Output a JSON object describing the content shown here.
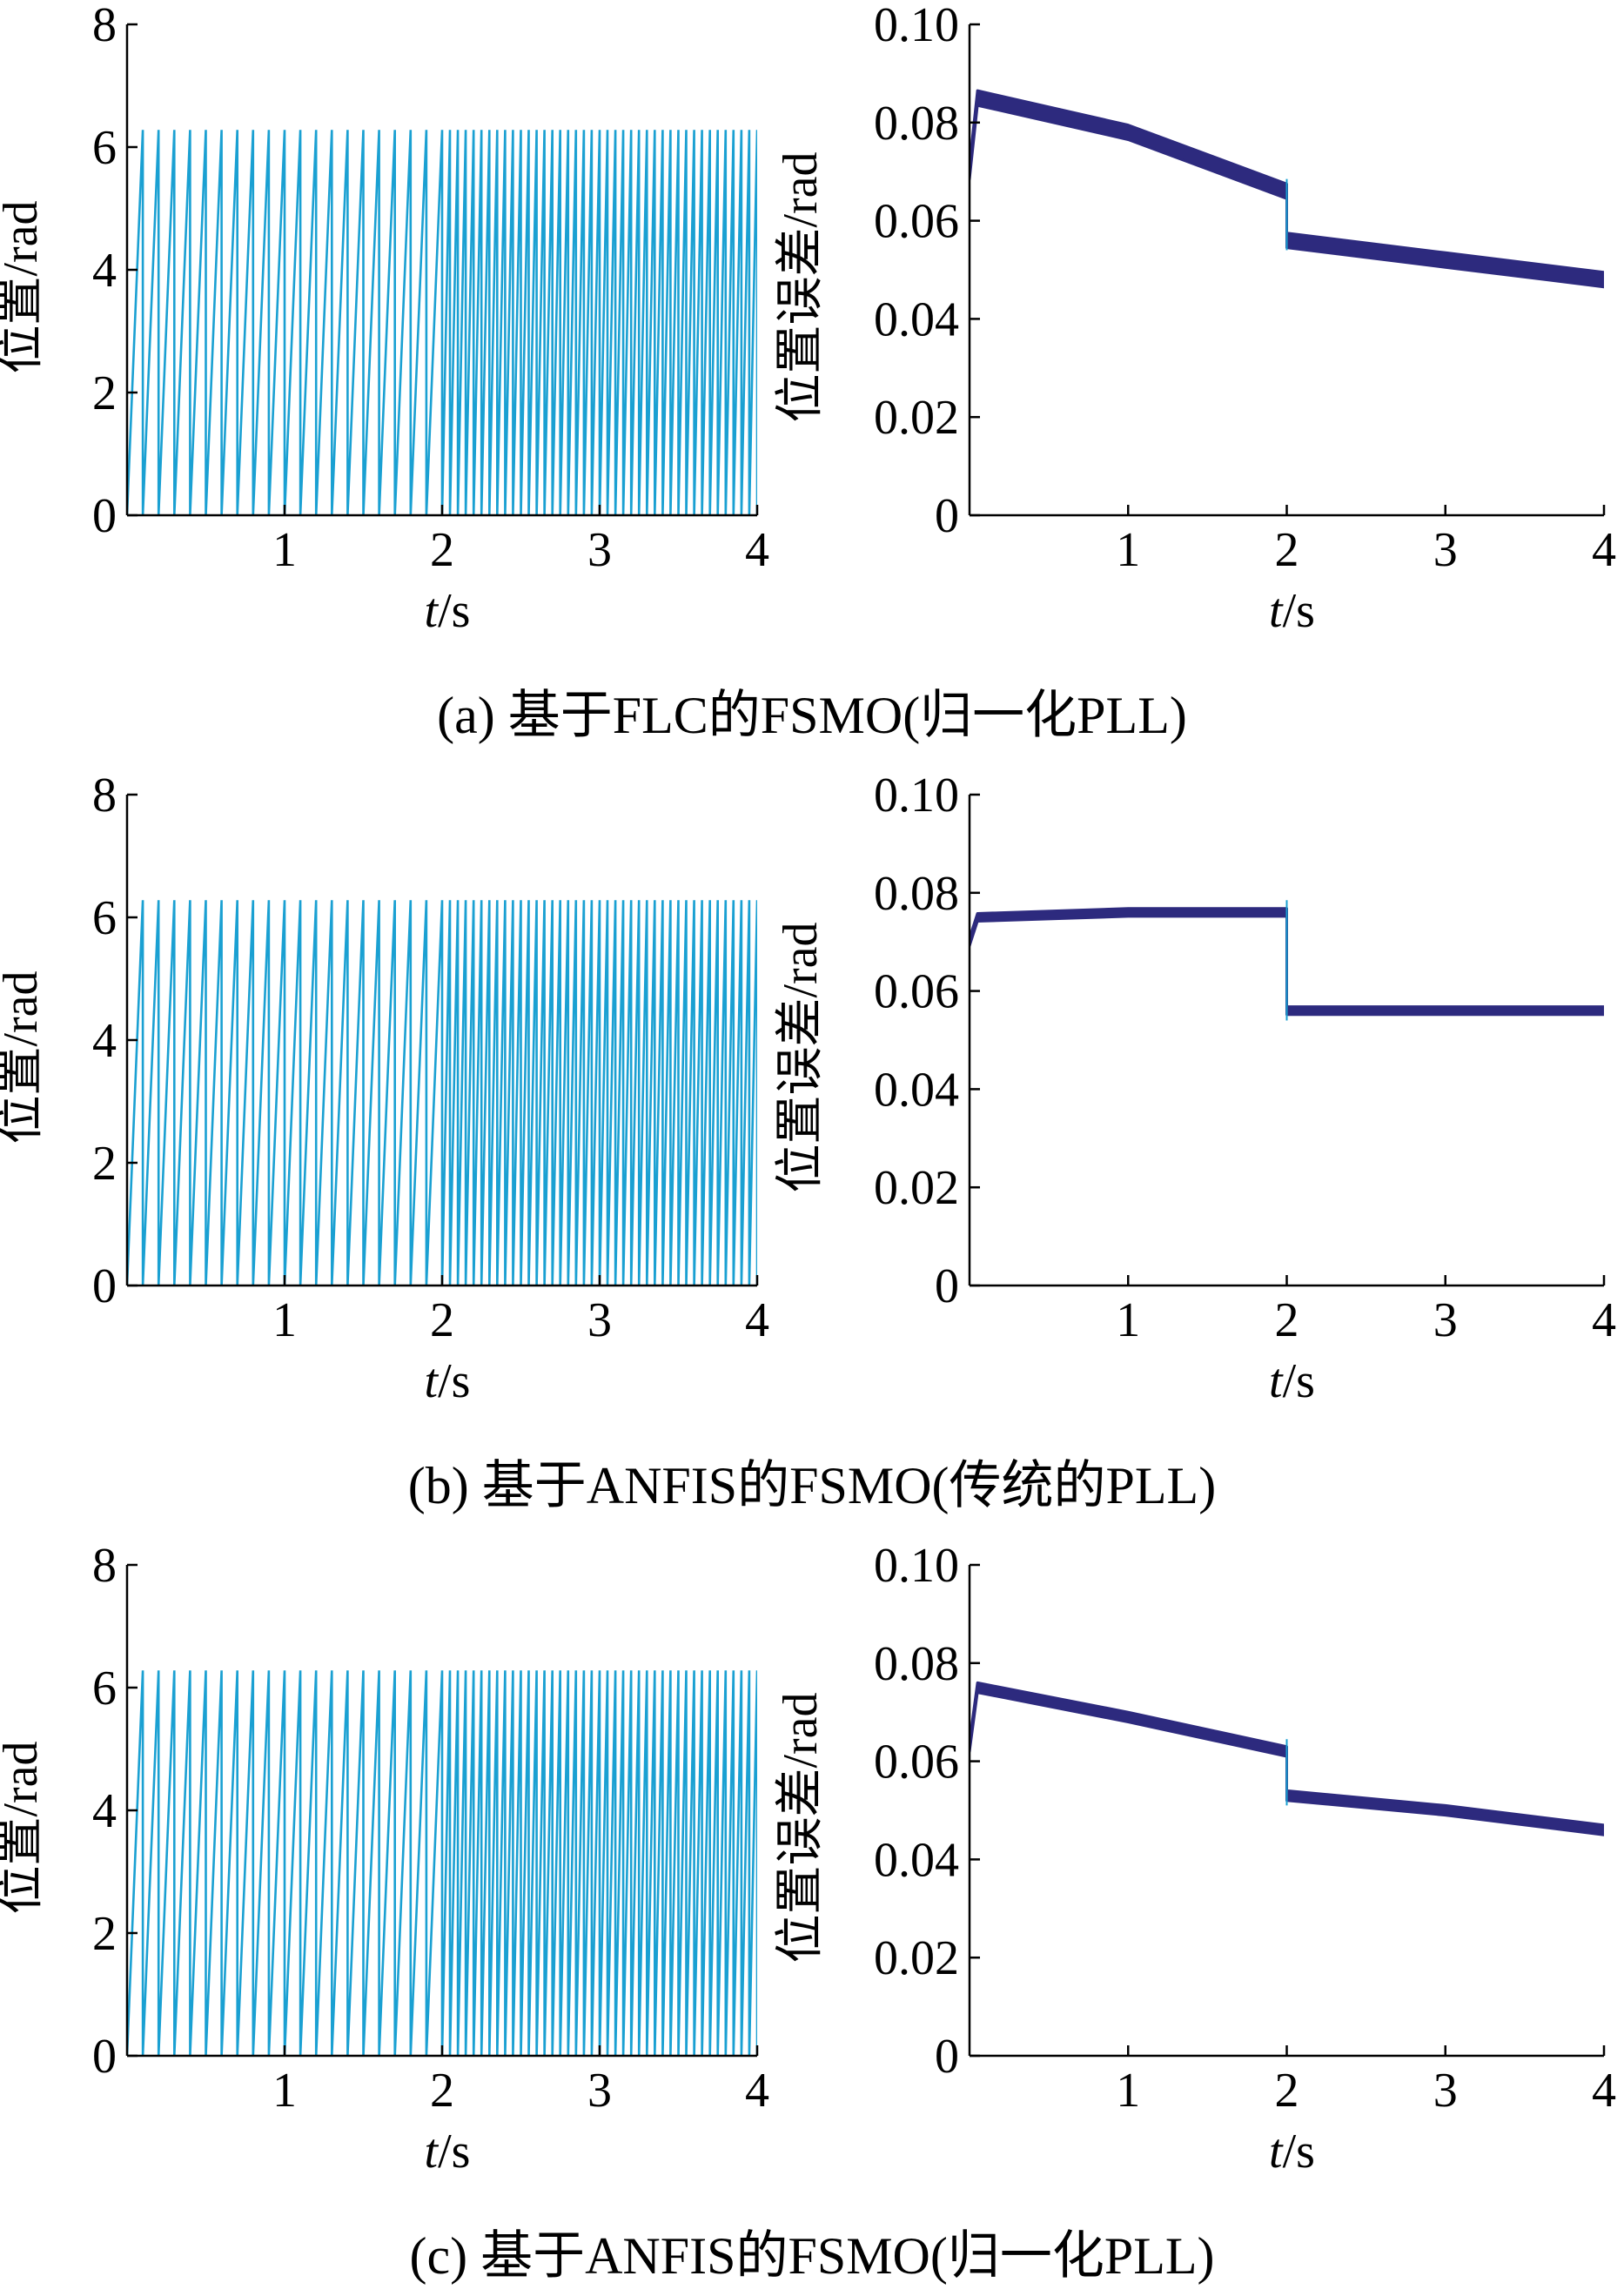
{
  "colors": {
    "position": "#1aa0d2",
    "error": "#2d2a7e",
    "axis": "#000000"
  },
  "chart_data": [
    {
      "type": "line",
      "panel": "a",
      "caption": "(a) 基于FLC的FSMO(归一化PLL)",
      "left": {
        "ylabel": "位置/rad",
        "xlabel_t": "t",
        "xlabel_unit": "/s",
        "xlim": [
          0,
          4
        ],
        "ylim": [
          0,
          8
        ],
        "xticks": [
          1,
          2,
          3,
          4
        ],
        "yticks": [
          0,
          2,
          4,
          6,
          8
        ],
        "series": [
          {
            "kind": "sawtooth",
            "amplitude": 6.28,
            "segments": [
              {
                "t_start": 0,
                "t_end": 2,
                "period": 0.1
              },
              {
                "t_start": 2,
                "t_end": 4,
                "period": 0.05
              }
            ]
          }
        ]
      },
      "right": {
        "ylabel": "位置误差/rad",
        "xlabel_t": "t",
        "xlabel_unit": "/s",
        "xlim": [
          0,
          4
        ],
        "ylim": [
          0,
          0.1
        ],
        "xticks": [
          1,
          2,
          3,
          4
        ],
        "yticks": [
          0,
          0.02,
          0.04,
          0.06,
          0.08,
          0.1
        ],
        "ytick_labels": [
          "0",
          "0.02",
          "0.04",
          "0.06",
          "0.08",
          "0.10"
        ],
        "series": [
          {
            "kind": "band",
            "x": [
              0,
              0.05,
              1.0,
              2.0,
              2.0,
              3.0,
              4.0
            ],
            "y": [
              0.07,
              0.085,
              0.078,
              0.066,
              0.056,
              0.052,
              0.048
            ],
            "spread": 0.0015
          }
        ]
      }
    },
    {
      "type": "line",
      "panel": "b",
      "caption": "(b) 基于ANFIS的FSMO(传统的PLL)",
      "left": {
        "ylabel": "位置/rad",
        "xlabel_t": "t",
        "xlabel_unit": "/s",
        "xlim": [
          0,
          4
        ],
        "ylim": [
          0,
          8
        ],
        "xticks": [
          1,
          2,
          3,
          4
        ],
        "yticks": [
          0,
          2,
          4,
          6,
          8
        ],
        "series": [
          {
            "kind": "sawtooth",
            "amplitude": 6.28,
            "segments": [
              {
                "t_start": 0,
                "t_end": 2,
                "period": 0.1
              },
              {
                "t_start": 2,
                "t_end": 4,
                "period": 0.05
              }
            ]
          }
        ]
      },
      "right": {
        "ylabel": "位置误差/rad",
        "xlabel_t": "t",
        "xlabel_unit": "/s",
        "xlim": [
          0,
          4
        ],
        "ylim": [
          0,
          0.1
        ],
        "xticks": [
          1,
          2,
          3,
          4
        ],
        "yticks": [
          0,
          0.02,
          0.04,
          0.06,
          0.08,
          0.1
        ],
        "ytick_labels": [
          "0",
          "0.02",
          "0.04",
          "0.06",
          "0.08",
          "0.10"
        ],
        "series": [
          {
            "kind": "band",
            "x": [
              0,
              0.05,
              1.0,
              2.0,
              2.0,
              3.0,
              4.0
            ],
            "y": [
              0.07,
              0.075,
              0.076,
              0.076,
              0.056,
              0.056,
              0.056
            ],
            "spread": 0.0008
          }
        ]
      }
    },
    {
      "type": "line",
      "panel": "c",
      "caption": "(c) 基于ANFIS的FSMO(归一化PLL)",
      "left": {
        "ylabel": "位置/rad",
        "xlabel_t": "t",
        "xlabel_unit": "/s",
        "xlim": [
          0,
          4
        ],
        "ylim": [
          0,
          8
        ],
        "xticks": [
          1,
          2,
          3,
          4
        ],
        "yticks": [
          0,
          2,
          4,
          6,
          8
        ],
        "series": [
          {
            "kind": "sawtooth",
            "amplitude": 6.28,
            "segments": [
              {
                "t_start": 0,
                "t_end": 2,
                "period": 0.1
              },
              {
                "t_start": 2,
                "t_end": 4,
                "period": 0.05
              }
            ]
          }
        ]
      },
      "right": {
        "ylabel": "位置误差/rad",
        "xlabel_t": "t",
        "xlabel_unit": "/s",
        "xlim": [
          0,
          4
        ],
        "ylim": [
          0,
          0.1
        ],
        "xticks": [
          1,
          2,
          3,
          4
        ],
        "yticks": [
          0,
          0.02,
          0.04,
          0.06,
          0.08,
          0.1
        ],
        "ytick_labels": [
          "0",
          "0.02",
          "0.04",
          "0.06",
          "0.08",
          "0.10"
        ],
        "series": [
          {
            "kind": "band",
            "x": [
              0,
              0.05,
              1.0,
              2.0,
              2.0,
              3.0,
              4.0
            ],
            "y": [
              0.063,
              0.075,
              0.069,
              0.062,
              0.053,
              0.05,
              0.046
            ],
            "spread": 0.001
          }
        ]
      }
    }
  ]
}
